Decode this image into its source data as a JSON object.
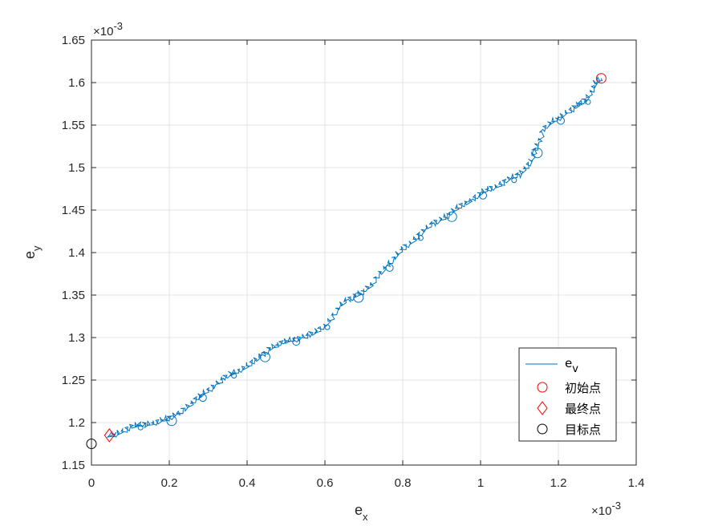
{
  "chart_data": {
    "type": "line",
    "xlabel": "e",
    "xlabel_sub": "x",
    "ylabel": "e",
    "ylabel_sub": "y",
    "x_multiplier_base": "×10",
    "x_multiplier_exp": "-3",
    "y_multiplier_base": "×10",
    "y_multiplier_exp": "-3",
    "xlim": [
      0,
      1.4
    ],
    "ylim": [
      1.15,
      1.65
    ],
    "x_ticks": [
      0,
      0.2,
      0.4,
      0.6,
      0.8,
      1.0,
      1.2,
      1.4
    ],
    "x_tick_labels": [
      "0",
      "0.2",
      "0.4",
      "0.6",
      "0.8",
      "1",
      "1.2",
      "1.4"
    ],
    "y_ticks": [
      1.15,
      1.2,
      1.25,
      1.3,
      1.35,
      1.4,
      1.45,
      1.5,
      1.55,
      1.6,
      1.65
    ],
    "y_tick_labels": [
      "1.15",
      "1.2",
      "1.25",
      "1.3",
      "1.35",
      "1.4",
      "1.45",
      "1.5",
      "1.55",
      "1.6",
      "1.65"
    ],
    "grid": true,
    "legend_position": "bottom-right",
    "series": [
      {
        "name": "e",
        "name_sub": "v",
        "color": "#0072BD",
        "points": [
          [
            1.31,
            1.605
          ],
          [
            1.295,
            1.6
          ],
          [
            1.285,
            1.59
          ],
          [
            1.27,
            1.58
          ],
          [
            1.255,
            1.575
          ],
          [
            1.24,
            1.57
          ],
          [
            1.22,
            1.565
          ],
          [
            1.2,
            1.558
          ],
          [
            1.18,
            1.553
          ],
          [
            1.16,
            1.545
          ],
          [
            1.15,
            1.53
          ],
          [
            1.14,
            1.52
          ],
          [
            1.13,
            1.508
          ],
          [
            1.115,
            1.5
          ],
          [
            1.1,
            1.492
          ],
          [
            1.08,
            1.488
          ],
          [
            1.06,
            1.483
          ],
          [
            1.04,
            1.478
          ],
          [
            1.02,
            1.475
          ],
          [
            1.0,
            1.47
          ],
          [
            0.98,
            1.463
          ],
          [
            0.96,
            1.458
          ],
          [
            0.94,
            1.453
          ],
          [
            0.92,
            1.445
          ],
          [
            0.9,
            1.44
          ],
          [
            0.88,
            1.435
          ],
          [
            0.86,
            1.428
          ],
          [
            0.84,
            1.42
          ],
          [
            0.82,
            1.412
          ],
          [
            0.8,
            1.405
          ],
          [
            0.78,
            1.395
          ],
          [
            0.76,
            1.385
          ],
          [
            0.74,
            1.375
          ],
          [
            0.72,
            1.362
          ],
          [
            0.7,
            1.355
          ],
          [
            0.68,
            1.35
          ],
          [
            0.66,
            1.345
          ],
          [
            0.64,
            1.338
          ],
          [
            0.62,
            1.325
          ],
          [
            0.6,
            1.315
          ],
          [
            0.58,
            1.308
          ],
          [
            0.56,
            1.303
          ],
          [
            0.54,
            1.3
          ],
          [
            0.52,
            1.298
          ],
          [
            0.5,
            1.296
          ],
          [
            0.48,
            1.292
          ],
          [
            0.46,
            1.288
          ],
          [
            0.44,
            1.28
          ],
          [
            0.42,
            1.273
          ],
          [
            0.4,
            1.267
          ],
          [
            0.38,
            1.262
          ],
          [
            0.36,
            1.258
          ],
          [
            0.34,
            1.252
          ],
          [
            0.32,
            1.245
          ],
          [
            0.3,
            1.238
          ],
          [
            0.28,
            1.232
          ],
          [
            0.26,
            1.224
          ],
          [
            0.24,
            1.217
          ],
          [
            0.22,
            1.21
          ],
          [
            0.2,
            1.205
          ],
          [
            0.18,
            1.203
          ],
          [
            0.16,
            1.2
          ],
          [
            0.14,
            1.198
          ],
          [
            0.12,
            1.197
          ],
          [
            0.1,
            1.195
          ],
          [
            0.08,
            1.19
          ],
          [
            0.06,
            1.186
          ],
          [
            0.046,
            1.185
          ]
        ]
      }
    ],
    "markers": [
      {
        "name": "初始点",
        "shape": "circle",
        "color": "#FF0000",
        "x": 1.31,
        "y": 1.605
      },
      {
        "name": "最终点",
        "shape": "diamond",
        "color": "#FF0000",
        "x": 0.046,
        "y": 1.185
      },
      {
        "name": "目标点",
        "shape": "circle",
        "color": "#000000",
        "x": 0.0,
        "y": 1.175
      }
    ]
  }
}
